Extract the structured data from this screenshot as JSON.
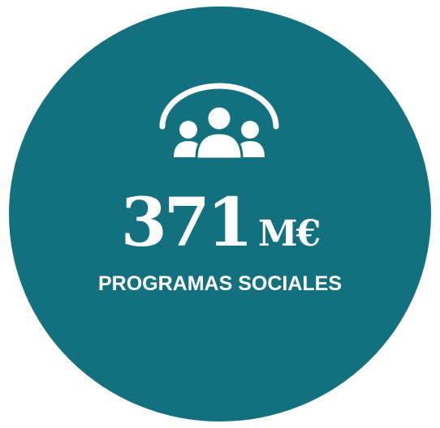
{
  "stat": {
    "value": "371",
    "unit": "M€",
    "label": "PROGRAMAS SOCIALES",
    "icon": "people-group-icon"
  },
  "colors": {
    "circle": "#13717f",
    "text": "#ffffff",
    "background": "#ffffff"
  }
}
